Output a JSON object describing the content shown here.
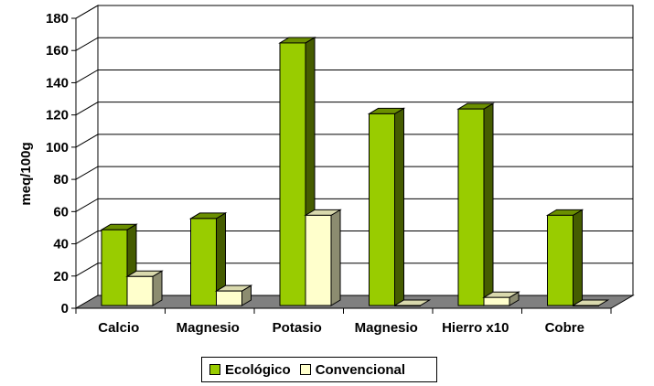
{
  "chart_data": {
    "type": "bar",
    "title": "",
    "xlabel": "",
    "ylabel": "meq/100g",
    "ylim": [
      0,
      180
    ],
    "yticks": [
      0,
      20,
      40,
      60,
      80,
      100,
      120,
      140,
      160,
      180
    ],
    "grid": true,
    "legend_position": "bottom",
    "categories": [
      "Calcio",
      "Magnesio",
      "Potasio",
      "Magnesio",
      "Hierro x10",
      "Cobre"
    ],
    "series": [
      {
        "name": "Ecológico",
        "values": [
          47,
          54,
          163,
          119,
          122,
          56
        ],
        "color": "#99CC00"
      },
      {
        "name": "Convencional",
        "values": [
          18,
          9,
          56,
          0,
          5,
          0
        ],
        "color": "#FFFFCC"
      }
    ]
  }
}
